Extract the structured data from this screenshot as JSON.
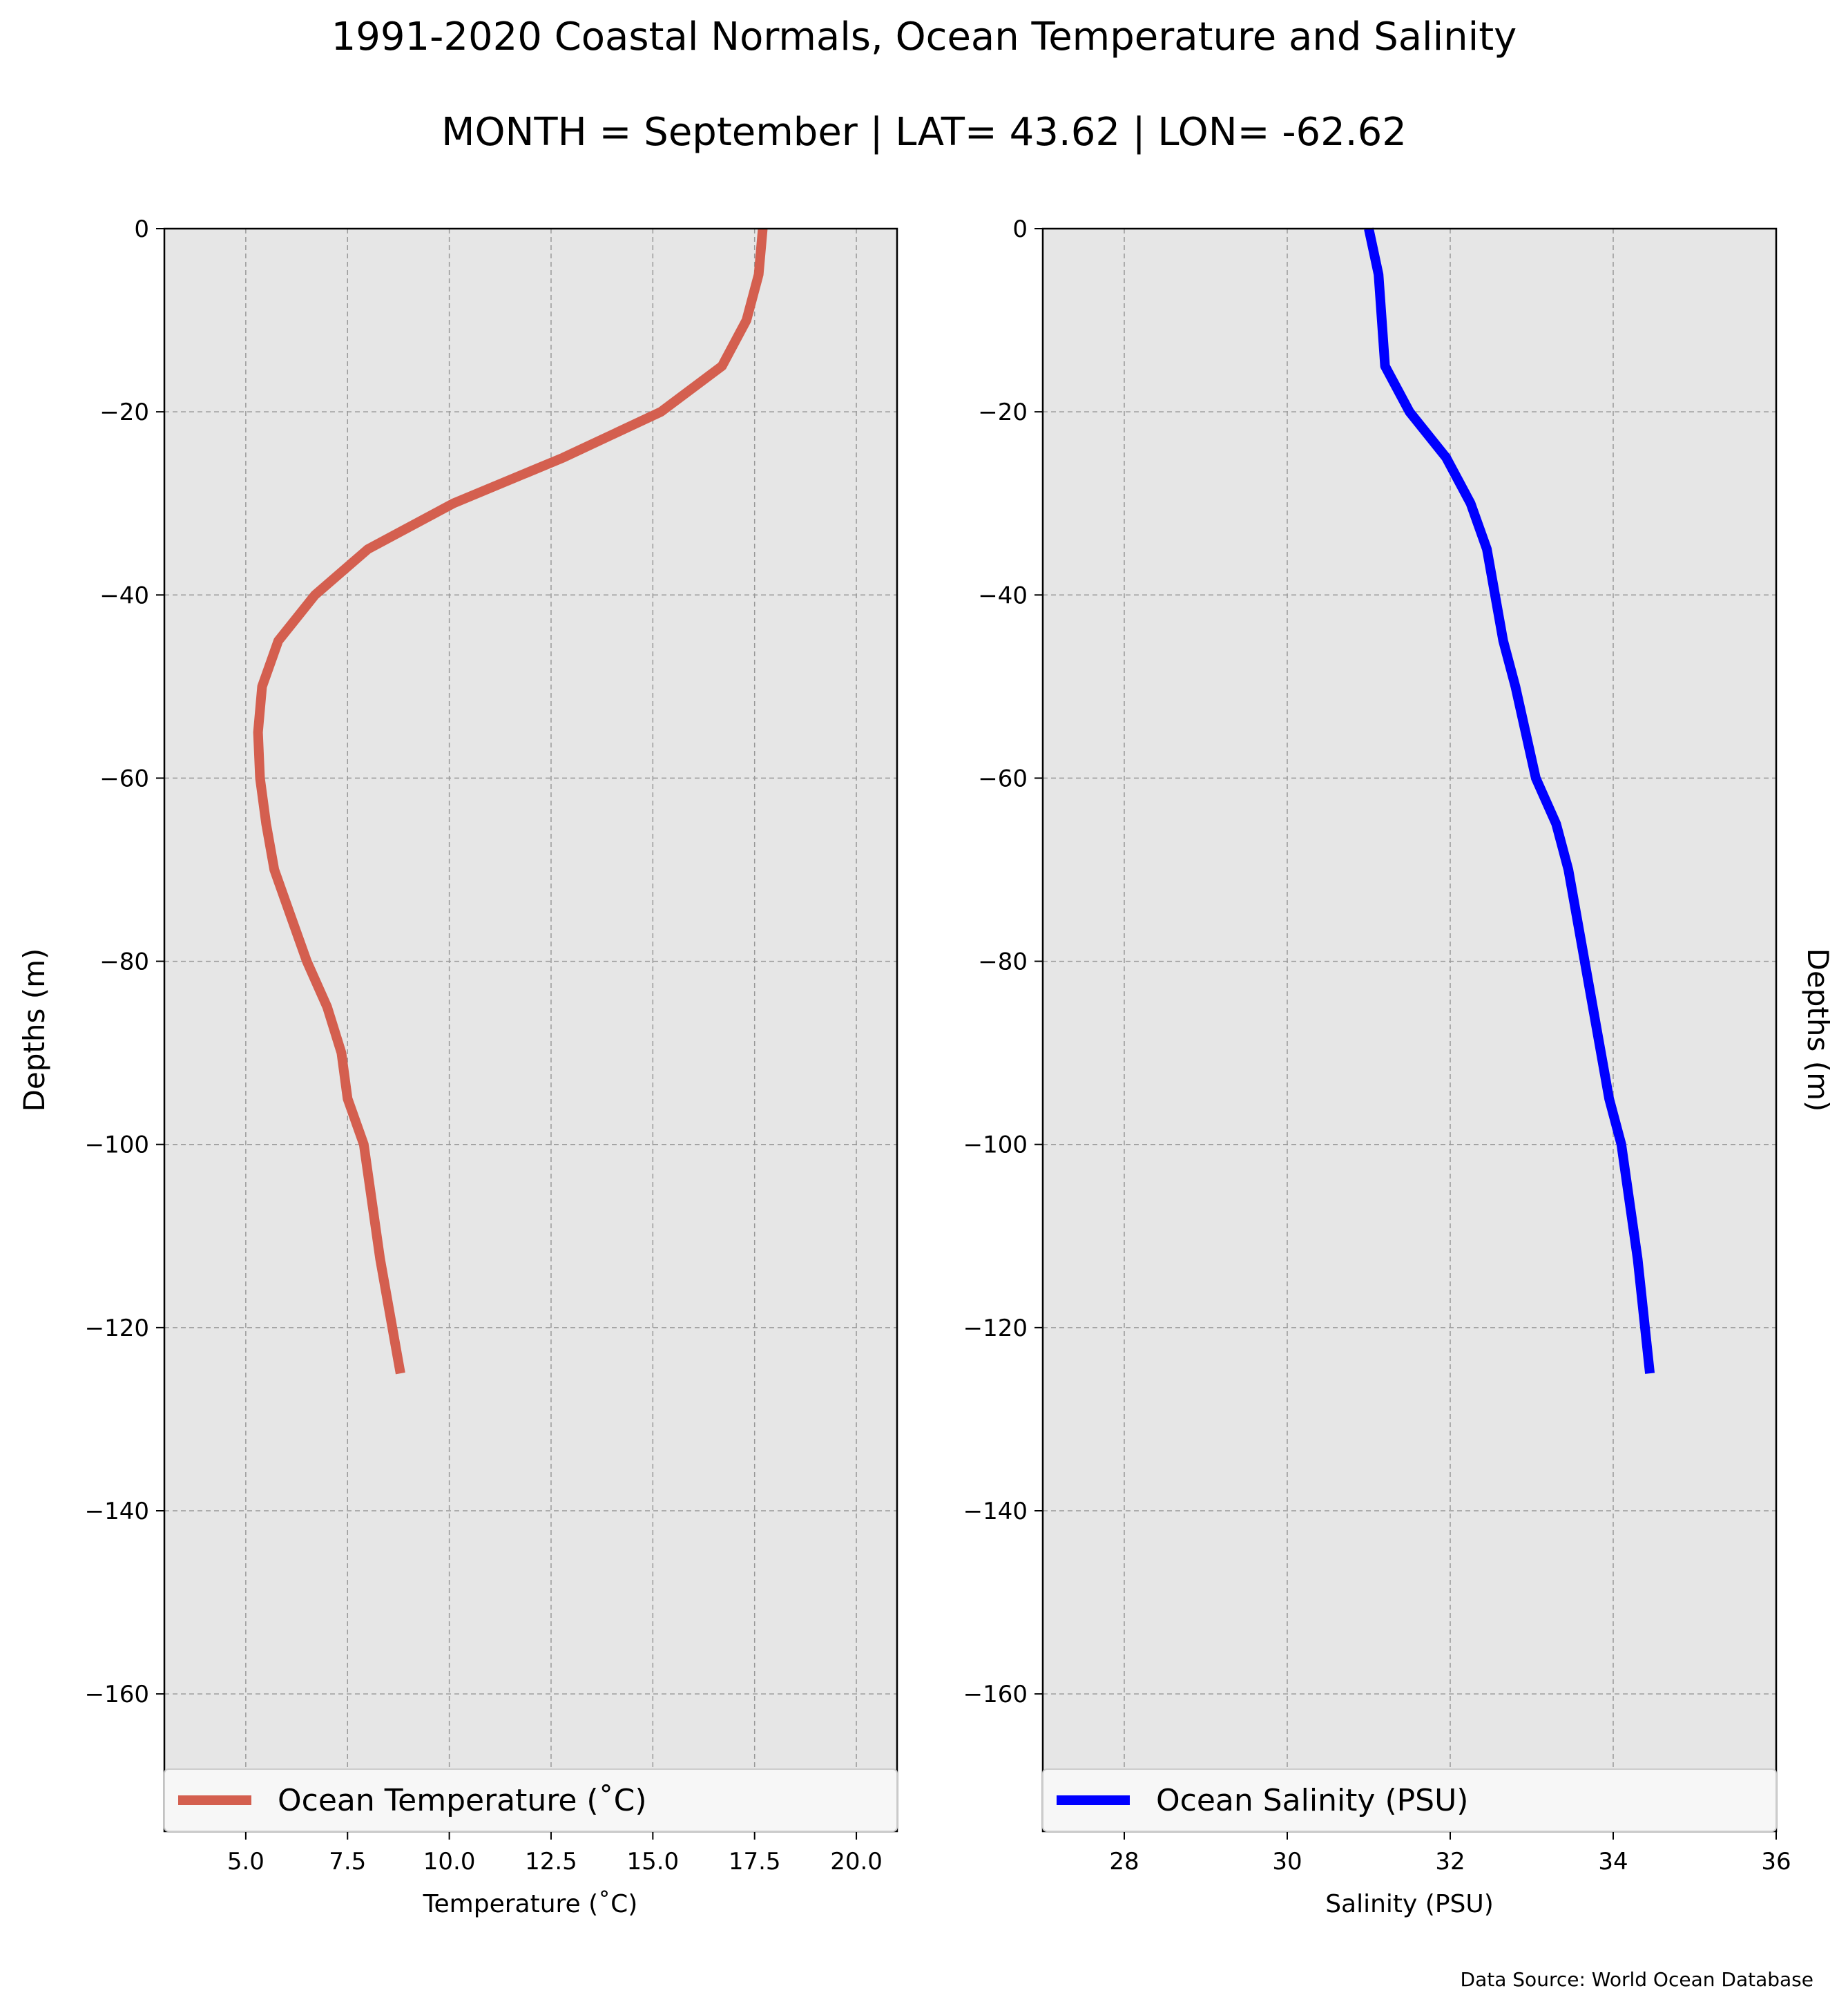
{
  "figure": {
    "title": "1991-2020 Coastal Normals, Ocean Temperature and Salinity",
    "subtitle": "MONTH = September | LAT= 43.62 | LON= -62.62",
    "source_note": "Data Source: World Ocean Database"
  },
  "colors": {
    "panel_background": "#e6e6e6",
    "grid": "#999999",
    "temperature_line": "#d45f4f",
    "salinity_line": "#0000ff"
  },
  "chart_data": [
    {
      "type": "line",
      "xlabel": "Temperature ($^\\circ$C)",
      "xlabel_display": "Temperature (˚C)",
      "ylabel": "Depths (m)",
      "xlim": [
        3,
        21
      ],
      "ylim": [
        -175,
        0
      ],
      "xticks": [
        5.0,
        7.5,
        10.0,
        12.5,
        15.0,
        17.5,
        20.0
      ],
      "xtick_labels": [
        "5.0",
        "7.5",
        "10.0",
        "12.5",
        "15.0",
        "17.5",
        "20.0"
      ],
      "yticks": [
        0,
        -20,
        -40,
        -60,
        -80,
        -100,
        -120,
        -140,
        -160
      ],
      "ytick_labels": [
        "0",
        "−20",
        "−40",
        "−60",
        "−80",
        "−100",
        "−120",
        "−140",
        "−160"
      ],
      "grid": true,
      "legend_position": "bottom",
      "series": [
        {
          "name": "Ocean Temperature (˚C)",
          "x": [
            17.7,
            17.6,
            17.3,
            16.7,
            15.2,
            12.8,
            10.1,
            8.0,
            6.7,
            5.8,
            5.4,
            5.3,
            5.35,
            5.5,
            5.7,
            6.1,
            6.5,
            7.0,
            7.35,
            7.5,
            7.9,
            8.3,
            8.8
          ],
          "y": [
            0,
            -5,
            -10,
            -15,
            -20,
            -25,
            -30,
            -35,
            -40,
            -45,
            -50,
            -55,
            -60,
            -65,
            -70,
            -75,
            -80,
            -85,
            -90,
            -95,
            -100,
            -112.5,
            -125
          ]
        }
      ]
    },
    {
      "type": "line",
      "xlabel": "Salinity (PSU)",
      "ylabel": "Depths (m)",
      "xlim": [
        27,
        36
      ],
      "ylim": [
        -175,
        0
      ],
      "xticks": [
        28,
        30,
        32,
        34,
        36
      ],
      "xtick_labels": [
        "28",
        "30",
        "32",
        "34",
        "36"
      ],
      "yticks": [
        0,
        -20,
        -40,
        -60,
        -80,
        -100,
        -120,
        -140,
        -160
      ],
      "ytick_labels": [
        "0",
        "−20",
        "−40",
        "−60",
        "−80",
        "−100",
        "−120",
        "−140",
        "−160"
      ],
      "grid": true,
      "legend_position": "bottom",
      "series": [
        {
          "name": "Ocean Salinity (PSU)",
          "x": [
            31.0,
            31.12,
            31.2,
            31.5,
            31.95,
            32.25,
            32.45,
            32.65,
            32.8,
            33.05,
            33.3,
            33.45,
            33.65,
            33.85,
            33.95,
            34.1,
            34.3,
            34.45
          ],
          "y": [
            0,
            -5,
            -15,
            -20,
            -25,
            -30,
            -35,
            -45,
            -50,
            -60,
            -65,
            -70,
            -80,
            -90,
            -95,
            -100,
            -112.5,
            -125
          ]
        }
      ]
    }
  ]
}
